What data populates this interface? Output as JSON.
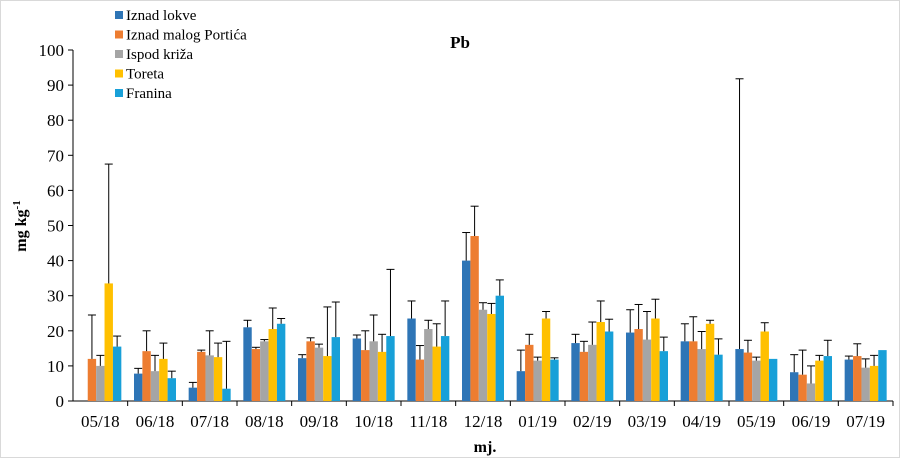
{
  "chart_data": {
    "type": "bar",
    "title": "Pb",
    "xlabel": "mj.",
    "ylabel_main": "mg kg",
    "ylabel_sup": "-1",
    "ylim": [
      0,
      100
    ],
    "yticks": [
      0,
      10,
      20,
      30,
      40,
      50,
      60,
      70,
      80,
      90,
      100
    ],
    "grid": false,
    "legend_position": "top-left",
    "error_bars": true,
    "categories": [
      "05/18",
      "06/18",
      "07/18",
      "08/18",
      "09/18",
      "10/18",
      "11/18",
      "12/18",
      "01/19",
      "02/19",
      "03/19",
      "04/19",
      "05/19",
      "06/19",
      "07/19"
    ],
    "series": [
      {
        "name": "Iznad lokve",
        "color": "#2e75b6",
        "values": [
          null,
          7.8,
          3.8,
          21.0,
          12.2,
          17.8,
          23.5,
          40.0,
          8.5,
          16.5,
          19.5,
          17.0,
          14.8,
          8.2,
          11.8
        ],
        "errors": [
          null,
          1.5,
          1.5,
          2.0,
          1.0,
          1.0,
          5.0,
          8.0,
          6.0,
          2.5,
          6.5,
          5.0,
          77.0,
          5.0,
          1.0
        ]
      },
      {
        "name": "Iznad malog Portića",
        "color": "#ed7d31",
        "values": [
          12.0,
          14.2,
          14.0,
          14.8,
          17.0,
          14.5,
          11.8,
          47.0,
          16.0,
          14.0,
          20.5,
          17.0,
          13.8,
          7.5,
          12.8
        ],
        "errors": [
          12.5,
          5.8,
          0.5,
          0.5,
          1.0,
          5.5,
          4.0,
          8.5,
          3.0,
          3.0,
          7.0,
          7.0,
          3.5,
          7.0,
          3.5
        ]
      },
      {
        "name": "Ispod križa",
        "color": "#a5a5a5",
        "values": [
          10.0,
          8.5,
          13.0,
          17.0,
          15.2,
          17.0,
          20.5,
          26.0,
          11.5,
          16.0,
          17.5,
          14.8,
          11.5,
          5.0,
          9.5
        ],
        "errors": [
          3.0,
          4.5,
          7.0,
          0.5,
          1.0,
          7.5,
          2.5,
          2.0,
          1.0,
          6.5,
          8.0,
          5.0,
          1.0,
          5.0,
          2.5
        ]
      },
      {
        "name": "Toreta",
        "color": "#ffc000",
        "values": [
          33.5,
          12.0,
          12.5,
          20.5,
          12.8,
          14.0,
          15.5,
          24.8,
          23.5,
          22.5,
          23.5,
          22.0,
          19.8,
          11.5,
          10.0
        ],
        "errors": [
          34.0,
          4.5,
          4.0,
          6.0,
          14.0,
          5.0,
          6.5,
          3.0,
          2.0,
          6.0,
          5.5,
          1.0,
          2.5,
          1.5,
          3.0
        ]
      },
      {
        "name": "Franina",
        "color": "#18a0d8",
        "values": [
          15.5,
          6.5,
          3.5,
          22.0,
          18.2,
          18.5,
          18.5,
          30.0,
          11.8,
          19.8,
          14.2,
          13.2,
          12.0,
          12.8,
          14.5
        ],
        "errors": [
          3.0,
          2.0,
          13.5,
          1.5,
          10.0,
          19.0,
          10.0,
          4.5,
          0.5,
          3.5,
          4.0,
          4.5,
          0.0,
          4.5,
          0.0
        ]
      }
    ]
  }
}
